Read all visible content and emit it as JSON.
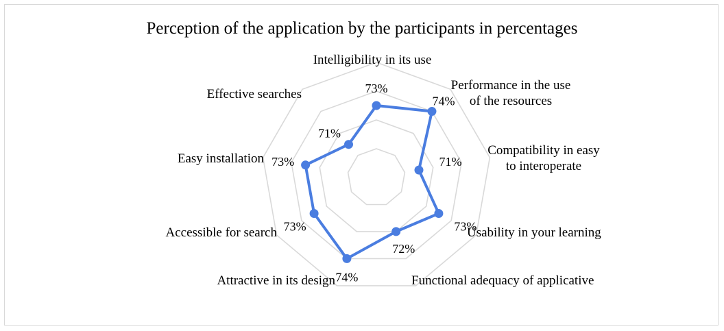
{
  "chart_data": {
    "type": "radar",
    "title": "Perception of the application by the participants in percentages",
    "categories": [
      [
        "Intelligibility in its use"
      ],
      [
        "Performance in the use",
        "of the resources"
      ],
      [
        "Compatibility in easy",
        "to interoperate"
      ],
      [
        "Usability in your learning"
      ],
      [
        "Functional adequacy of applicative"
      ],
      [
        "Attractive in its design"
      ],
      [
        "Accessible for search"
      ],
      [
        "Easy installation"
      ],
      [
        "Effective searches"
      ]
    ],
    "series": [
      {
        "values": [
          73,
          74,
          71,
          73,
          72,
          74,
          73,
          73,
          71
        ],
        "labels": [
          "73%",
          "74%",
          "71%",
          "73%",
          "72%",
          "74%",
          "73%",
          "73%",
          "71%"
        ]
      }
    ],
    "rlim": [
      68,
      76
    ],
    "grid": true,
    "legend": "none",
    "line_color": "#4a7de0",
    "grid_color": "#d9d9d9"
  }
}
